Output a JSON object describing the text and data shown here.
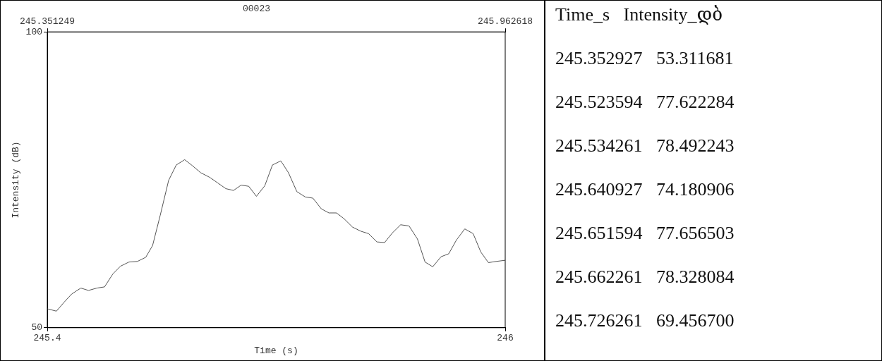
{
  "chart_data": {
    "type": "line",
    "title": "00023",
    "xlabel": "Time (s)",
    "ylabel": "Intensity (dB)",
    "x": [
      245.4,
      245.412,
      245.422,
      245.432,
      245.444,
      245.454,
      245.465,
      245.475,
      245.486,
      245.496,
      245.507,
      245.518,
      245.529,
      245.538,
      245.548,
      245.559,
      245.569,
      245.58,
      245.59,
      245.601,
      245.613,
      245.623,
      245.634,
      245.644,
      245.654,
      245.664,
      245.674,
      245.685,
      245.695,
      245.706,
      245.716,
      245.727,
      245.738,
      245.748,
      245.759,
      245.769,
      245.779,
      245.789,
      245.8,
      245.811,
      245.821,
      245.832,
      245.842,
      245.852,
      245.863,
      245.874,
      245.885,
      245.895,
      245.905,
      245.916,
      245.926,
      245.936,
      245.947,
      245.958,
      245.968,
      245.978,
      245.988,
      246.0
    ],
    "series": [
      {
        "color": "#555555",
        "values": [
          53.2,
          52.8,
          54.3,
          55.7,
          56.7,
          56.3,
          56.7,
          56.9,
          59.1,
          60.4,
          61.1,
          61.2,
          61.9,
          63.9,
          69.0,
          74.9,
          77.5,
          78.4,
          77.4,
          76.2,
          75.4,
          74.5,
          73.5,
          73.2,
          74.1,
          73.9,
          72.2,
          74.0,
          77.5,
          78.2,
          76.2,
          73.0,
          72.1,
          71.9,
          70.1,
          69.4,
          69.4,
          68.4,
          67.0,
          66.3,
          65.9,
          64.5,
          64.4,
          66.0,
          67.4,
          67.2,
          65.0,
          61.1,
          60.3,
          62.0,
          62.5,
          64.8,
          66.7,
          65.9,
          62.8,
          61.0,
          61.2,
          61.4
        ]
      }
    ],
    "xlim": [
      245.4,
      246
    ],
    "xticks": [
      245.4,
      246
    ],
    "x2lim": [
      245.351249,
      245.962618
    ],
    "x2ticks": [
      245.351249,
      245.962618
    ],
    "ylim": [
      50,
      100
    ],
    "yticks": [
      50,
      100
    ],
    "grid": false,
    "legend": false,
    "marker": "none",
    "line_style": "solid",
    "annotations": [
      "Time_s   Intensity_დბ",
      "245.352927   53.311681",
      "245.523594   77.622284",
      "245.534261   78.492243",
      "245.640927   74.180906",
      "245.651594   77.656503",
      "245.662261   78.328084",
      "245.726261   69.456700"
    ]
  }
}
